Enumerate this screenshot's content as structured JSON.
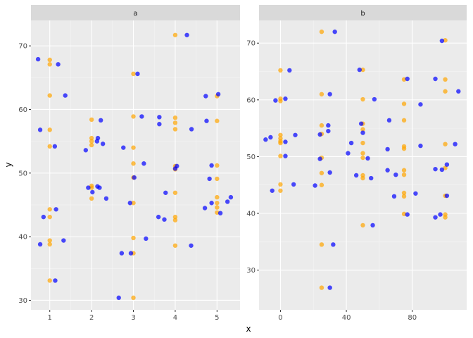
{
  "chart_data": [
    {
      "type": "scatter",
      "facet": "a",
      "xlabel": "x",
      "ylabel": "y",
      "xlim": [
        0.55,
        5.55
      ],
      "ylim": [
        28.5,
        74
      ],
      "x_ticks": [
        1,
        2,
        3,
        4,
        5
      ],
      "y_ticks": [
        30,
        40,
        50,
        60,
        70
      ],
      "grid": true,
      "legend": "none",
      "series": [
        {
          "color": "#FFA500",
          "points": [
            [
              1,
              67.8
            ],
            [
              1,
              67.1
            ],
            [
              1,
              62.2
            ],
            [
              1,
              56.8
            ],
            [
              1,
              54.2
            ],
            [
              1,
              44.3
            ],
            [
              1,
              43.1
            ],
            [
              1,
              39.4
            ],
            [
              1,
              38.8
            ],
            [
              1,
              33.1
            ],
            [
              2,
              58.4
            ],
            [
              2,
              55.5
            ],
            [
              2,
              55.0
            ],
            [
              2,
              54.4
            ],
            [
              2,
              48.0
            ],
            [
              2,
              47.7
            ],
            [
              2,
              46.0
            ],
            [
              3,
              65.6
            ],
            [
              3,
              58.9
            ],
            [
              3,
              54.0
            ],
            [
              3,
              51.5
            ],
            [
              3,
              49.3
            ],
            [
              3,
              45.3
            ],
            [
              3,
              39.8
            ],
            [
              3,
              37.4
            ],
            [
              3,
              30.4
            ],
            [
              4,
              71.7
            ],
            [
              4,
              58.7
            ],
            [
              4,
              57.9
            ],
            [
              4,
              56.9
            ],
            [
              4,
              51.1
            ],
            [
              4,
              50.6
            ],
            [
              4,
              46.9
            ],
            [
              4,
              43.1
            ],
            [
              4,
              42.6
            ],
            [
              4,
              38.6
            ],
            [
              5,
              62.1
            ],
            [
              5,
              58.2
            ],
            [
              5,
              51.2
            ],
            [
              5,
              49.1
            ],
            [
              5,
              46.2
            ],
            [
              5,
              45.3
            ],
            [
              5,
              44.6
            ],
            [
              5,
              43.8
            ]
          ]
        },
        {
          "color": "#0000FF",
          "points": [
            [
              0.72,
              67.9
            ],
            [
              1.2,
              67.1
            ],
            [
              1.37,
              62.2
            ],
            [
              0.77,
              56.8
            ],
            [
              1.12,
              54.2
            ],
            [
              1.15,
              44.3
            ],
            [
              0.85,
              43.1
            ],
            [
              1.33,
              39.4
            ],
            [
              0.77,
              38.8
            ],
            [
              1.13,
              33.1
            ],
            [
              2.22,
              58.3
            ],
            [
              2.15,
              55.5
            ],
            [
              2.13,
              55.0
            ],
            [
              2.27,
              54.6
            ],
            [
              1.86,
              53.6
            ],
            [
              2.14,
              47.9
            ],
            [
              2.19,
              47.7
            ],
            [
              1.92,
              47.7
            ],
            [
              2.02,
              47.0
            ],
            [
              2.35,
              46.0
            ],
            [
              3.1,
              65.6
            ],
            [
              3.2,
              58.9
            ],
            [
              2.76,
              54.0
            ],
            [
              3.25,
              51.5
            ],
            [
              3.02,
              49.3
            ],
            [
              2.92,
              45.3
            ],
            [
              3.3,
              39.7
            ],
            [
              2.72,
              37.4
            ],
            [
              2.94,
              37.4
            ],
            [
              2.65,
              30.4
            ],
            [
              4.28,
              71.7
            ],
            [
              3.62,
              58.8
            ],
            [
              3.62,
              57.7
            ],
            [
              4.39,
              56.9
            ],
            [
              4.04,
              51.1
            ],
            [
              4.0,
              50.7
            ],
            [
              3.77,
              46.9
            ],
            [
              3.6,
              43.1
            ],
            [
              3.74,
              42.7
            ],
            [
              4.38,
              38.6
            ],
            [
              5.03,
              62.4
            ],
            [
              4.73,
              62.1
            ],
            [
              4.75,
              58.2
            ],
            [
              4.87,
              51.2
            ],
            [
              4.82,
              49.1
            ],
            [
              5.33,
              46.2
            ],
            [
              5.25,
              45.5
            ],
            [
              4.87,
              45.3
            ],
            [
              4.71,
              44.5
            ],
            [
              5.08,
              43.7
            ]
          ]
        }
      ]
    },
    {
      "type": "scatter",
      "facet": "b",
      "xlabel": "x",
      "ylabel": "y",
      "xlim": [
        -13,
        113
      ],
      "ylim": [
        23,
        74
      ],
      "x_ticks": [
        0,
        40,
        80
      ],
      "y_ticks": [
        30,
        40,
        50,
        60,
        70
      ],
      "grid": true,
      "legend": "none",
      "series": [
        {
          "color": "#FFA500",
          "points": [
            [
              0,
              65.2
            ],
            [
              0,
              60.2
            ],
            [
              0,
              59.8
            ],
            [
              0,
              53.8
            ],
            [
              0,
              53.2
            ],
            [
              0,
              52.7
            ],
            [
              0,
              52.4
            ],
            [
              0,
              50.1
            ],
            [
              0,
              45.1
            ],
            [
              0,
              44.0
            ],
            [
              25,
              72.0
            ],
            [
              25,
              61.0
            ],
            [
              25,
              55.5
            ],
            [
              25,
              54.0
            ],
            [
              25,
              49.8
            ],
            [
              25,
              47.1
            ],
            [
              25,
              45.0
            ],
            [
              25,
              34.5
            ],
            [
              25,
              26.9
            ],
            [
              50,
              65.3
            ],
            [
              50,
              60.1
            ],
            [
              50,
              55.8
            ],
            [
              50,
              54.8
            ],
            [
              50,
              52.4
            ],
            [
              50,
              50.6
            ],
            [
              50,
              49.8
            ],
            [
              50,
              46.7
            ],
            [
              50,
              46.2
            ],
            [
              50,
              37.9
            ],
            [
              75,
              63.6
            ],
            [
              75,
              59.3
            ],
            [
              75,
              56.4
            ],
            [
              75,
              51.8
            ],
            [
              75,
              51.4
            ],
            [
              75,
              47.6
            ],
            [
              75,
              46.8
            ],
            [
              75,
              43.6
            ],
            [
              75,
              43.0
            ],
            [
              75,
              39.9
            ],
            [
              100,
              70.5
            ],
            [
              100,
              63.6
            ],
            [
              100,
              61.5
            ],
            [
              100,
              52.2
            ],
            [
              100,
              48.0
            ],
            [
              100,
              43.1
            ],
            [
              100,
              39.8
            ],
            [
              100,
              39.3
            ]
          ]
        },
        {
          "color": "#0000FF",
          "points": [
            [
              5.5,
              65.2
            ],
            [
              3,
              60.2
            ],
            [
              -3,
              59.9
            ],
            [
              -9,
              53.0
            ],
            [
              -6,
              53.4
            ],
            [
              3,
              52.6
            ],
            [
              9,
              53.8
            ],
            [
              3,
              50.1
            ],
            [
              8,
              45.1
            ],
            [
              -5,
              44.0
            ],
            [
              33,
              72.0
            ],
            [
              30,
              61.0
            ],
            [
              29,
              55.5
            ],
            [
              24,
              53.9
            ],
            [
              29,
              54.5
            ],
            [
              24,
              49.6
            ],
            [
              30,
              47.2
            ],
            [
              21,
              44.9
            ],
            [
              32,
              34.5
            ],
            [
              30,
              26.9
            ],
            [
              48,
              65.3
            ],
            [
              57,
              60.1
            ],
            [
              49,
              55.8
            ],
            [
              50,
              54.2
            ],
            [
              43,
              52.4
            ],
            [
              41,
              50.6
            ],
            [
              53,
              49.7
            ],
            [
              46,
              46.7
            ],
            [
              55,
              46.2
            ],
            [
              56,
              37.9
            ],
            [
              77,
              63.7
            ],
            [
              85,
              59.2
            ],
            [
              66,
              56.4
            ],
            [
              85,
              51.9
            ],
            [
              65,
              51.3
            ],
            [
              65,
              47.6
            ],
            [
              70,
              46.8
            ],
            [
              82,
              43.5
            ],
            [
              69,
              43.0
            ],
            [
              77,
              39.8
            ],
            [
              98,
              70.4
            ],
            [
              94,
              63.7
            ],
            [
              108,
              61.5
            ],
            [
              106,
              52.2
            ],
            [
              101,
              48.6
            ],
            [
              94,
              47.8
            ],
            [
              98,
              47.7
            ],
            [
              101,
              43.1
            ],
            [
              97,
              39.8
            ],
            [
              94,
              39.3
            ]
          ]
        }
      ]
    }
  ]
}
